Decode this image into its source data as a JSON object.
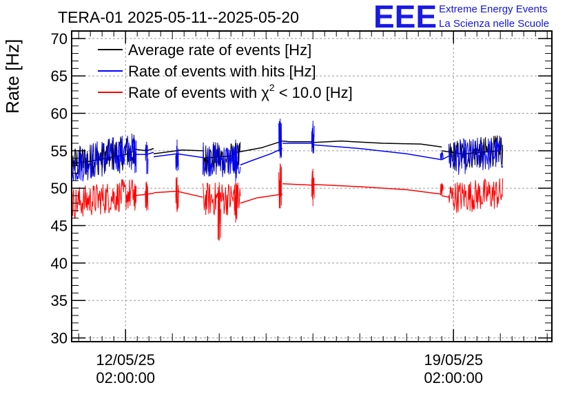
{
  "chart_data": {
    "type": "line",
    "title": "TERA-01 2025-05-11--2025-05-20",
    "ylabel": "Rate [Hz]",
    "xlabel": "",
    "ylim": [
      29.5,
      71
    ],
    "yticks": [
      30,
      35,
      40,
      45,
      50,
      55,
      60,
      65,
      70
    ],
    "x_unit": "days since 2025-05-11 02:00:00",
    "xlim": [
      -0.15,
      10.1
    ],
    "xticks": [
      {
        "x": 1,
        "label_line1": "12/05/25",
        "label_line2": "02:00:00"
      },
      {
        "x": 8,
        "label_line1": "19/05/25",
        "label_line2": "02:00:00"
      }
    ],
    "grid": true,
    "legend_placement": "top-left",
    "logo": {
      "mark": "EEE",
      "line1": "Extreme Energy Events",
      "line2": "La Scienza nelle Scuole"
    },
    "series": [
      {
        "name": "Average rate of events [Hz]",
        "color": "#000000",
        "legend_label": "Average rate of events [Hz]",
        "segments": [
          {
            "x": [
              -0.25,
              0.0,
              0.25,
              0.5,
              0.75,
              1.0,
              1.2
            ],
            "y": [
              53.2,
              53.4,
              53.6,
              53.9,
              54.2,
              54.5,
              55.0
            ]
          },
          {
            "x": [
              1.2,
              1.45
            ],
            "y": [
              55.2,
              55.0
            ]
          },
          {
            "x": [
              1.45,
              1.6
            ],
            "y": [
              55.0,
              55.3
            ]
          },
          {
            "x": [
              1.6,
              2.2,
              2.65
            ],
            "y": [
              54.6,
              55.1,
              55.0
            ]
          },
          {
            "x": [
              2.65,
              3.0
            ],
            "y": [
              54.0,
              54.2
            ]
          },
          {
            "x": [
              3.0,
              3.3
            ],
            "y": [
              54.2,
              54.3
            ]
          },
          {
            "x": [
              3.3,
              3.9,
              4.35
            ],
            "y": [
              54.7,
              55.4,
              56.3
            ]
          },
          {
            "x": [
              4.35,
              4.5,
              5.0
            ],
            "y": [
              56.3,
              56.2,
              56.2
            ]
          },
          {
            "x": [
              5.0,
              5.6,
              6.5,
              7.3,
              7.75
            ],
            "y": [
              56.1,
              56.3,
              56.0,
              55.9,
              55.5
            ]
          },
          {
            "x": [
              7.75,
              8.25
            ],
            "y": [
              55.0,
              54.5
            ]
          },
          {
            "x": [
              8.25,
              8.6,
              9.0
            ],
            "y": [
              54.6,
              54.8,
              55.0
            ]
          }
        ],
        "noisy_blocks": [
          {
            "x0": -0.35,
            "x1": 1.2,
            "center_start": 53.0,
            "center_end": 55.0,
            "amplitude": 2.3
          },
          {
            "x0": 2.65,
            "x1": 3.45,
            "center_start": 54.0,
            "center_end": 54.0,
            "amplitude": 2.2
          },
          {
            "x0": 7.9,
            "x1": 9.05,
            "center_start": 54.3,
            "center_end": 55.1,
            "amplitude": 2.1
          }
        ]
      },
      {
        "name": "Rate of events with hits [Hz]",
        "color": "#0000ff",
        "legend_label": "Rate of events with hits [Hz]",
        "segments": [
          {
            "x": [
              1.2,
              1.45,
              1.6
            ],
            "y": [
              54.5,
              54.5,
              54.8
            ]
          },
          {
            "x": [
              1.6,
              2.1,
              2.65
            ],
            "y": [
              54.2,
              54.6,
              54.1
            ]
          },
          {
            "x": [
              3.45,
              3.7,
              4.1,
              4.35
            ],
            "y": [
              53.1,
              53.7,
              54.6,
              55.3
            ]
          },
          {
            "x": [
              4.35,
              5.0
            ],
            "y": [
              56.0,
              56.0
            ]
          },
          {
            "x": [
              5.0,
              6.0,
              7.0,
              7.75
            ],
            "y": [
              55.8,
              55.3,
              54.6,
              53.8
            ]
          },
          {
            "x": [
              7.75,
              7.9
            ],
            "y": [
              53.8,
              54.3
            ]
          }
        ],
        "noisy_blocks": [
          {
            "x0": -0.35,
            "x1": 1.2,
            "center_start": 52.8,
            "center_end": 55.0,
            "amplitude": 2.6
          },
          {
            "x0": 2.65,
            "x1": 3.45,
            "center_start": 54.0,
            "center_end": 53.6,
            "amplitude": 2.4
          },
          {
            "x0": 7.9,
            "x1": 9.05,
            "center_start": 54.0,
            "center_end": 54.8,
            "amplitude": 2.4
          }
        ],
        "spikes": [
          {
            "x": 1.2,
            "ymin": 52.0,
            "ymax": 56.5
          },
          {
            "x": 1.45,
            "ymin": 51.9,
            "ymax": 56.2
          },
          {
            "x": 2.1,
            "ymin": 52.3,
            "ymax": 56.5
          },
          {
            "x": 3.35,
            "ymin": 50.9,
            "ymax": 56.5
          },
          {
            "x": 4.3,
            "ymin": 54.0,
            "ymax": 59.3
          },
          {
            "x": 5.0,
            "ymin": 54.6,
            "ymax": 59.0
          },
          {
            "x": 7.75,
            "ymin": 53.8,
            "ymax": 54.9
          }
        ]
      },
      {
        "name": "Rate of events with χ² < 10.0 [Hz]",
        "color": "#ff0000",
        "legend_label_parts": [
          "Rate of events with ",
          "χ",
          "2",
          " < 10.0 [Hz]"
        ],
        "segments": [
          {
            "x": [
              1.2,
              1.45,
              1.6
            ],
            "y": [
              49.0,
              49.2,
              49.3
            ]
          },
          {
            "x": [
              1.6,
              2.1,
              2.65
            ],
            "y": [
              49.4,
              49.6,
              48.8
            ]
          },
          {
            "x": [
              3.45,
              3.8,
              4.35
            ],
            "y": [
              48.0,
              48.7,
              49.2
            ]
          },
          {
            "x": [
              4.35,
              5.0
            ],
            "y": [
              50.6,
              50.4
            ]
          },
          {
            "x": [
              5.0,
              6.0,
              7.0,
              7.75
            ],
            "y": [
              50.5,
              50.2,
              49.8,
              49.2
            ]
          },
          {
            "x": [
              7.75,
              7.9
            ],
            "y": [
              49.0,
              48.8
            ]
          }
        ],
        "noisy_blocks": [
          {
            "x0": -0.35,
            "x1": 1.2,
            "center_start": 47.8,
            "center_end": 49.3,
            "amplitude": 2.2
          },
          {
            "x0": 2.65,
            "x1": 3.45,
            "center_start": 48.5,
            "center_end": 48.7,
            "amplitude": 2.3
          },
          {
            "x0": 7.9,
            "x1": 9.05,
            "center_start": 48.8,
            "center_end": 49.3,
            "amplitude": 2.2
          }
        ],
        "spikes": [
          {
            "x": 1.2,
            "ymin": 47.0,
            "ymax": 50.6
          },
          {
            "x": 1.45,
            "ymin": 47.0,
            "ymax": 50.9
          },
          {
            "x": 2.1,
            "ymin": 46.8,
            "ymax": 51.5
          },
          {
            "x": 3.0,
            "ymin": 43.0,
            "ymax": 50.8
          },
          {
            "x": 3.35,
            "ymin": 45.4,
            "ymax": 50.9
          },
          {
            "x": 4.3,
            "ymin": 47.3,
            "ymax": 53.3
          },
          {
            "x": 5.0,
            "ymin": 47.6,
            "ymax": 52.6
          },
          {
            "x": 7.75,
            "ymin": 49.0,
            "ymax": 50.7
          }
        ]
      }
    ]
  }
}
